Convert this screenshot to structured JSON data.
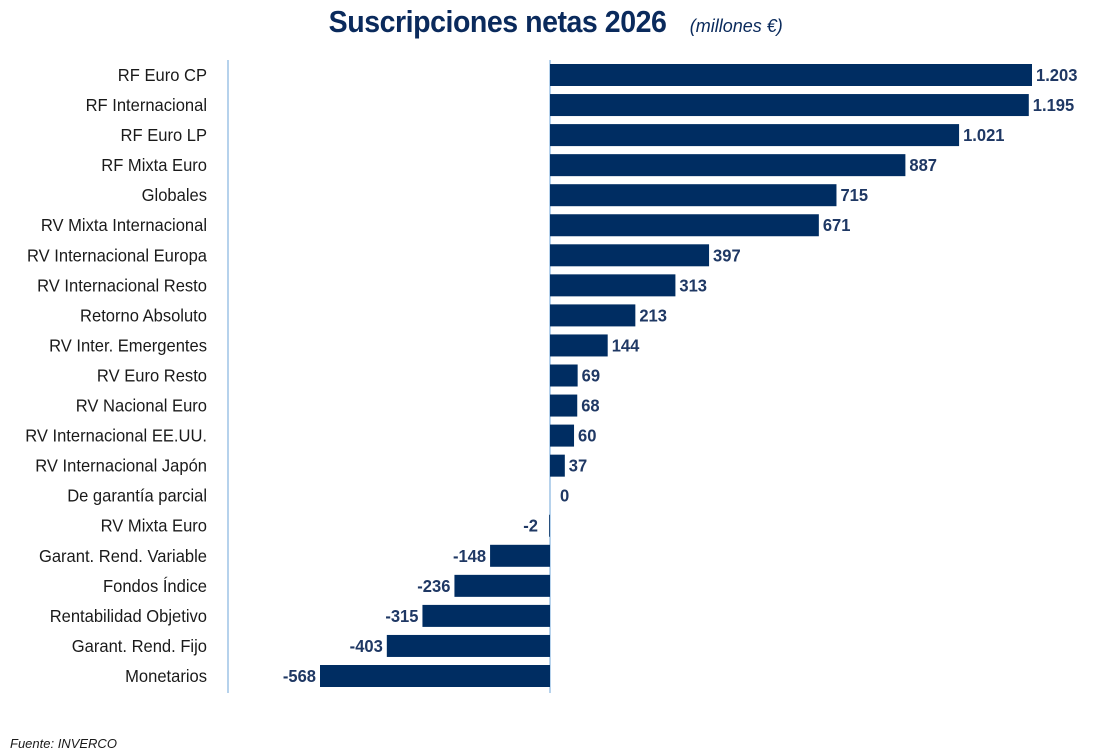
{
  "colors": {
    "bar": "#002d62",
    "label": "#1f3864",
    "axis": "#9dc3e6",
    "text": "#1a1a1a"
  },
  "source": "Fuente: INVERCO",
  "chart_data": {
    "type": "bar",
    "orientation": "horizontal",
    "title": "Suscripciones netas 2026",
    "subtitle": "(millones €)",
    "categories": [
      "RF Euro CP",
      "RF Internacional",
      "RF Euro LP",
      "RF Mixta Euro",
      "Globales",
      "RV Mixta Internacional",
      "RV Internacional Europa",
      "RV Internacional Resto",
      "Retorno Absoluto",
      "RV Inter. Emergentes",
      "RV Euro Resto",
      "RV Nacional Euro",
      "RV Internacional EE.UU.",
      "RV Internacional Japón",
      "De garantía parcial",
      "RV Mixta Euro",
      "Garant. Rend. Variable",
      "Fondos Índice",
      "Rentabilidad Objetivo",
      "Garant. Rend. Fijo",
      "Monetarios"
    ],
    "values": [
      1203,
      1195,
      1021,
      887,
      715,
      671,
      397,
      313,
      213,
      144,
      69,
      68,
      60,
      37,
      0,
      -2,
      -148,
      -236,
      -315,
      -403,
      -568
    ],
    "value_labels": [
      "1.203",
      "1.195",
      "1.021",
      "887",
      "715",
      "671",
      "397",
      "313",
      "213",
      "144",
      "69",
      "68",
      "60",
      "37",
      "0",
      "-2",
      "-148",
      "-236",
      "-315",
      "-403",
      "-568"
    ],
    "xlim": [
      -568,
      1203
    ],
    "grid": false,
    "legend": "none"
  }
}
